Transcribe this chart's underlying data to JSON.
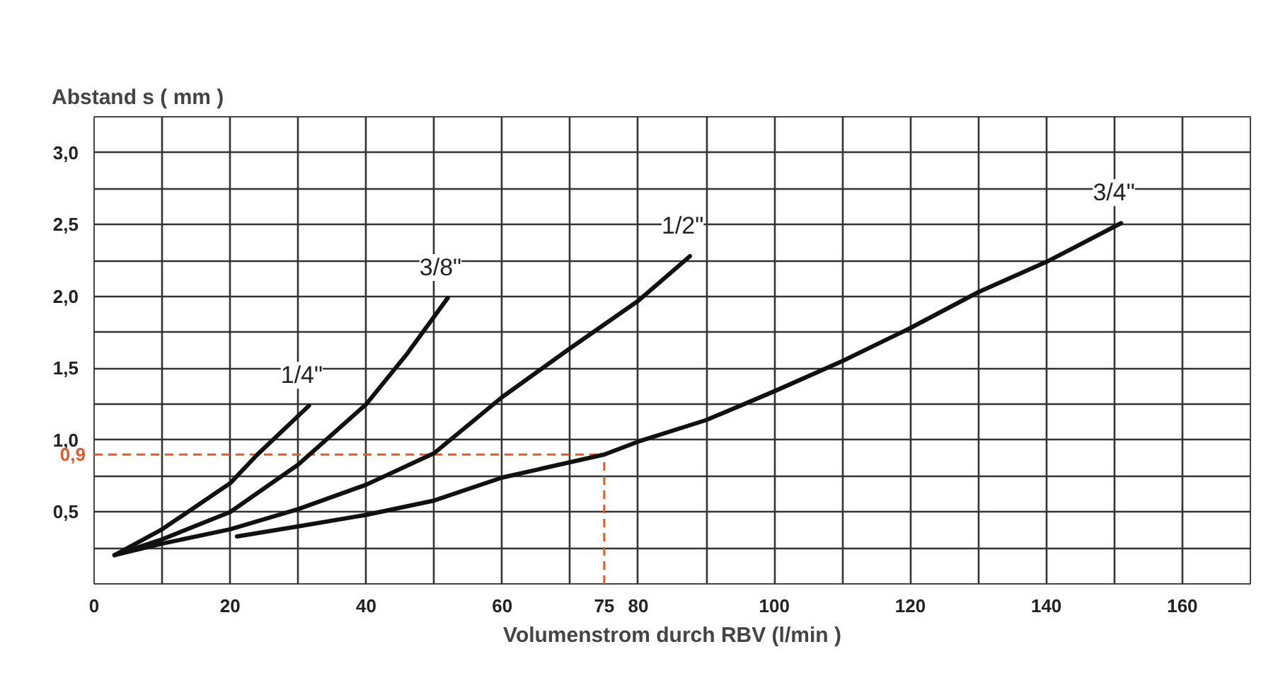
{
  "chart_data": {
    "type": "line",
    "ylabel": "Abstand s ( mm )",
    "xlabel": "Volumenstrom durch RBV (l/min )",
    "xlim": [
      0,
      170
    ],
    "ylim": [
      0,
      3.25
    ],
    "xticks": [
      0,
      {
        "value": 10,
        "label": null
      },
      20,
      {
        "value": 30,
        "label": null
      },
      40,
      {
        "value": 50,
        "label": null
      },
      60,
      {
        "value": 70,
        "label": null
      },
      80,
      {
        "value": 90,
        "label": null
      },
      100,
      {
        "value": 110,
        "label": null
      },
      120,
      {
        "value": 130,
        "label": null
      },
      140,
      {
        "value": 150,
        "label": null
      },
      160,
      {
        "value": 170,
        "label": null
      }
    ],
    "yticks": [
      {
        "value": 0,
        "label": null
      },
      {
        "value": 0.25,
        "label": null
      },
      {
        "value": 0.5,
        "label": "0,5"
      },
      {
        "value": 0.75,
        "label": null
      },
      {
        "value": 1.0,
        "label": "1,0"
      },
      {
        "value": 1.25,
        "label": null
      },
      {
        "value": 1.5,
        "label": "1,5"
      },
      {
        "value": 1.75,
        "label": null
      },
      {
        "value": 2.0,
        "label": "2,0"
      },
      {
        "value": 2.25,
        "label": null
      },
      {
        "value": 2.5,
        "label": "2,5"
      },
      {
        "value": 2.75,
        "label": null
      },
      {
        "value": 3.0,
        "label": "3,0"
      },
      {
        "value": 3.25,
        "label": null
      }
    ],
    "grid": true,
    "line_style": "solid",
    "marker": "none",
    "series": [
      {
        "name": "1/4\"",
        "color": "#111111",
        "x": [
          3,
          10,
          20,
          24,
          31.6
        ],
        "values": [
          0.2,
          0.38,
          0.7,
          0.9,
          1.24
        ]
      },
      {
        "name": "3/8\"",
        "color": "#111111",
        "x": [
          3,
          10,
          20,
          30,
          40,
          46,
          52
        ],
        "values": [
          0.2,
          0.31,
          0.5,
          0.83,
          1.25,
          1.6,
          1.99
        ]
      },
      {
        "name": "1/2\"",
        "color": "#111111",
        "x": [
          3,
          10,
          20,
          30,
          40,
          50,
          60,
          70,
          80,
          87.6
        ],
        "values": [
          0.2,
          0.28,
          0.38,
          0.52,
          0.69,
          0.91,
          1.3,
          1.64,
          1.97,
          2.28
        ]
      },
      {
        "name": "3/4\"",
        "color": "#111111",
        "x": [
          21,
          30,
          40,
          50,
          60,
          75,
          80,
          90,
          100,
          110,
          120,
          130,
          140,
          151
        ],
        "values": [
          0.33,
          0.4,
          0.48,
          0.58,
          0.74,
          0.9,
          0.99,
          1.14,
          1.34,
          1.55,
          1.78,
          2.03,
          2.24,
          2.51
        ]
      }
    ],
    "ref_lines": [
      {
        "axis": "y",
        "value": 0.9,
        "label": "0,9",
        "color": "#e05a2a",
        "line_style": "dashed"
      },
      {
        "axis": "x",
        "value": 75,
        "label": "75",
        "color": "#e05a2a",
        "line_style": "dashed"
      }
    ]
  }
}
